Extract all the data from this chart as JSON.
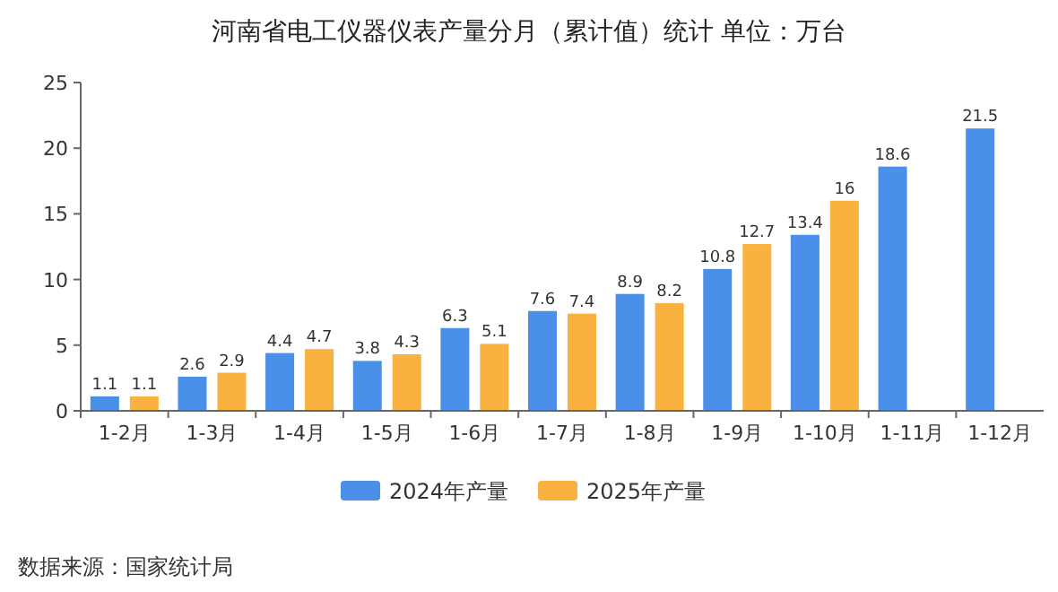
{
  "chart_data": {
    "type": "bar",
    "title": "河南省电工仪器仪表产量分月（累计值）统计 单位：万台",
    "categories": [
      "1-2月",
      "1-3月",
      "1-4月",
      "1-5月",
      "1-6月",
      "1-7月",
      "1-8月",
      "1-9月",
      "1-10月",
      "1-11月",
      "1-12月"
    ],
    "series": [
      {
        "name": "2024年产量",
        "color": "#4a90e8",
        "values": [
          1.1,
          2.6,
          4.4,
          3.8,
          6.3,
          7.6,
          8.9,
          10.8,
          13.4,
          18.6,
          21.5
        ]
      },
      {
        "name": "2025年产量",
        "color": "#f9b13f",
        "values": [
          1.1,
          2.9,
          4.7,
          4.3,
          5.1,
          7.4,
          8.2,
          12.7,
          16,
          null,
          null
        ]
      }
    ],
    "ylim": [
      0,
      25
    ],
    "yticks": [
      0,
      5,
      10,
      15,
      20,
      25
    ],
    "data_labels": true,
    "legend": "bottom",
    "annotations": [
      "数据来源：国家统计局"
    ]
  }
}
